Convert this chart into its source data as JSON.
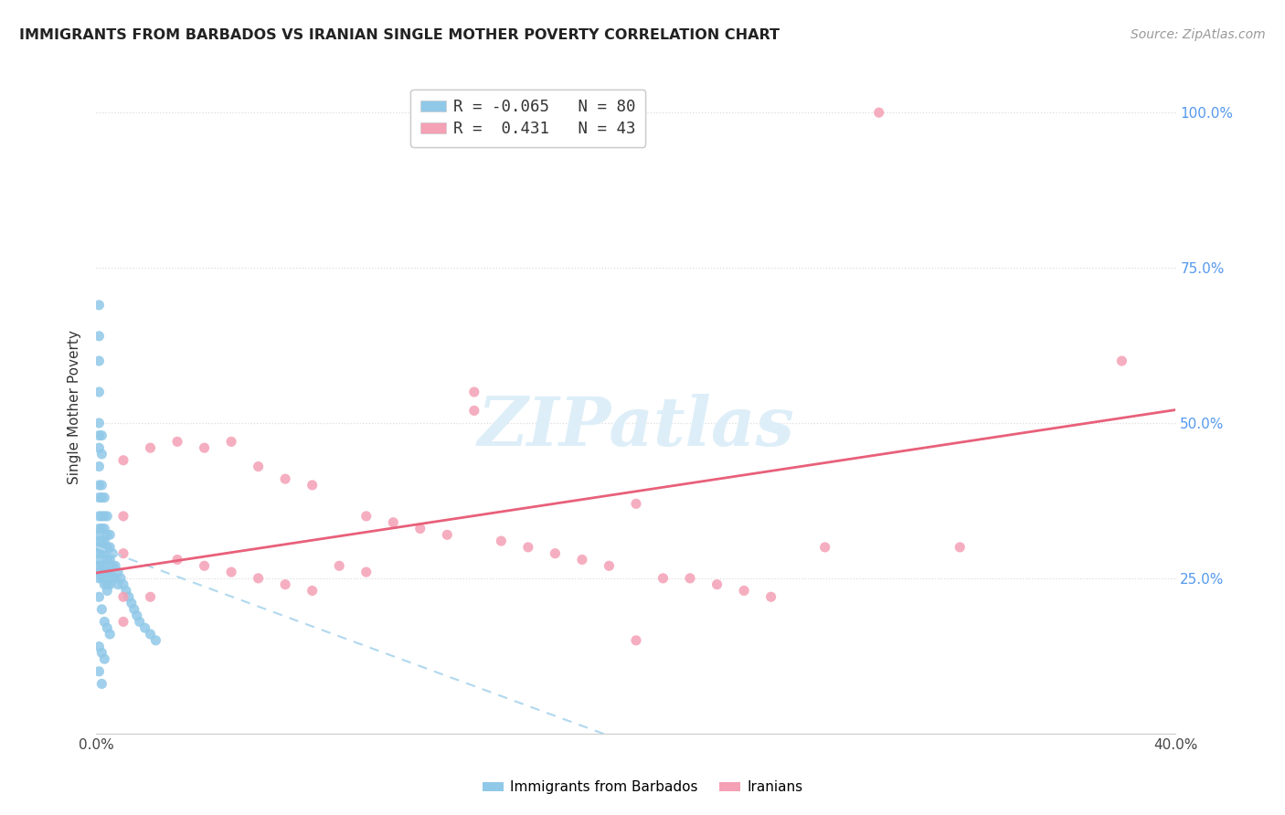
{
  "title": "IMMIGRANTS FROM BARBADOS VS IRANIAN SINGLE MOTHER POVERTY CORRELATION CHART",
  "source": "Source: ZipAtlas.com",
  "ylabel": "Single Mother Poverty",
  "barbados_R": -0.065,
  "barbados_N": 80,
  "iranian_R": 0.431,
  "iranian_N": 43,
  "barbados_color": "#90c8e8",
  "iranian_color": "#f4a0b5",
  "barbados_line_color": "#b0d8ee",
  "iranian_line_color": "#e8607a",
  "right_tick_color": "#5599ee",
  "watermark_color": "#ddeef8",
  "legend_barbados": "Immigrants from Barbados",
  "legend_iranians": "Iranians",
  "xmin": 0.0,
  "xmax": 0.4,
  "ymin": 0.0,
  "ymax": 1.05,
  "grid_color": "#dddddd",
  "title_color": "#222222",
  "source_color": "#999999",
  "barbados_x": [
    0.001,
    0.001,
    0.001,
    0.001,
    0.001,
    0.001,
    0.001,
    0.001,
    0.001,
    0.001,
    0.001,
    0.001,
    0.001,
    0.001,
    0.001,
    0.001,
    0.001,
    0.001,
    0.001,
    0.001,
    0.002,
    0.002,
    0.002,
    0.002,
    0.002,
    0.002,
    0.002,
    0.002,
    0.002,
    0.002,
    0.002,
    0.002,
    0.003,
    0.003,
    0.003,
    0.003,
    0.003,
    0.003,
    0.003,
    0.003,
    0.004,
    0.004,
    0.004,
    0.004,
    0.004,
    0.004,
    0.004,
    0.005,
    0.005,
    0.005,
    0.005,
    0.005,
    0.006,
    0.006,
    0.006,
    0.007,
    0.007,
    0.008,
    0.008,
    0.009,
    0.01,
    0.011,
    0.012,
    0.013,
    0.014,
    0.015,
    0.016,
    0.018,
    0.02,
    0.022,
    0.001,
    0.002,
    0.003,
    0.004,
    0.005,
    0.001,
    0.002,
    0.003,
    0.001,
    0.002
  ],
  "barbados_y": [
    0.69,
    0.64,
    0.6,
    0.55,
    0.5,
    0.48,
    0.46,
    0.43,
    0.4,
    0.38,
    0.35,
    0.33,
    0.32,
    0.31,
    0.3,
    0.29,
    0.28,
    0.27,
    0.26,
    0.25,
    0.48,
    0.45,
    0.4,
    0.38,
    0.35,
    0.33,
    0.31,
    0.3,
    0.29,
    0.27,
    0.26,
    0.25,
    0.38,
    0.35,
    0.33,
    0.31,
    0.29,
    0.27,
    0.25,
    0.24,
    0.35,
    0.32,
    0.3,
    0.28,
    0.26,
    0.24,
    0.23,
    0.32,
    0.3,
    0.28,
    0.26,
    0.24,
    0.29,
    0.27,
    0.25,
    0.27,
    0.25,
    0.26,
    0.24,
    0.25,
    0.24,
    0.23,
    0.22,
    0.21,
    0.2,
    0.19,
    0.18,
    0.17,
    0.16,
    0.15,
    0.22,
    0.2,
    0.18,
    0.17,
    0.16,
    0.14,
    0.13,
    0.12,
    0.1,
    0.08
  ],
  "iranian_x": [
    0.01,
    0.01,
    0.01,
    0.01,
    0.02,
    0.02,
    0.03,
    0.03,
    0.04,
    0.04,
    0.05,
    0.05,
    0.06,
    0.06,
    0.07,
    0.07,
    0.08,
    0.08,
    0.09,
    0.1,
    0.1,
    0.11,
    0.12,
    0.13,
    0.14,
    0.15,
    0.16,
    0.17,
    0.18,
    0.19,
    0.2,
    0.21,
    0.22,
    0.23,
    0.24,
    0.25,
    0.27,
    0.29,
    0.32,
    0.01,
    0.14,
    0.2,
    0.38
  ],
  "iranian_y": [
    0.44,
    0.35,
    0.29,
    0.22,
    0.46,
    0.22,
    0.47,
    0.28,
    0.46,
    0.27,
    0.47,
    0.26,
    0.43,
    0.25,
    0.41,
    0.24,
    0.4,
    0.23,
    0.27,
    0.35,
    0.26,
    0.34,
    0.33,
    0.32,
    0.55,
    0.31,
    0.3,
    0.29,
    0.28,
    0.27,
    0.37,
    0.25,
    0.25,
    0.24,
    0.23,
    0.22,
    0.3,
    1.0,
    0.3,
    0.18,
    0.52,
    0.15,
    0.6
  ]
}
